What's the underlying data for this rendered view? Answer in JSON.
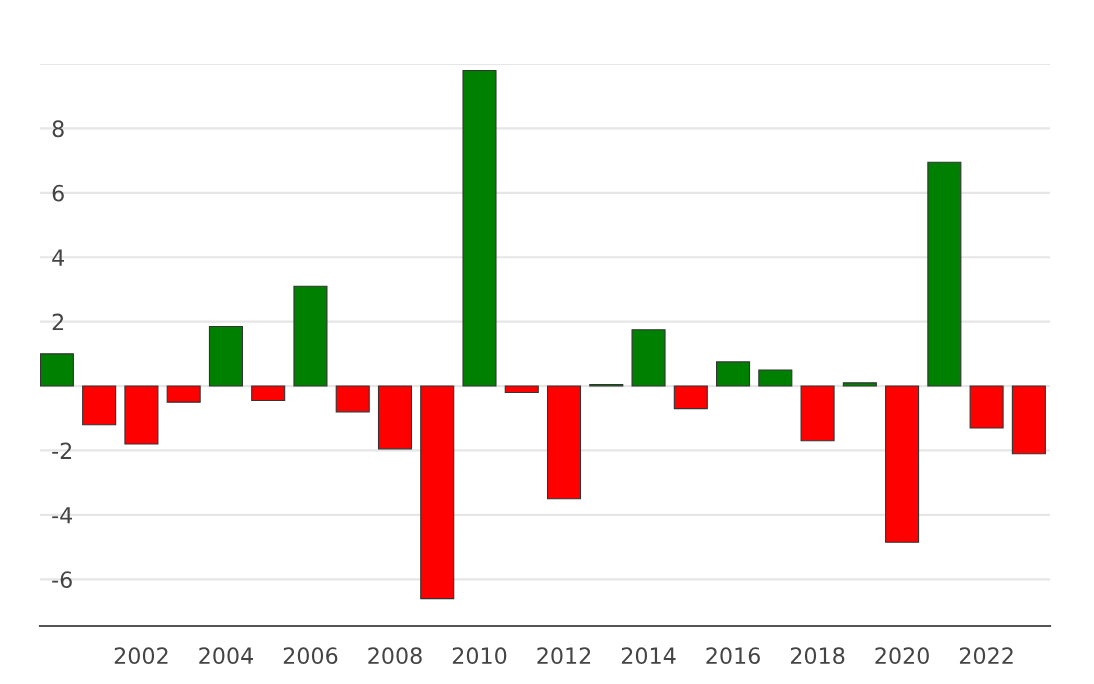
{
  "chart_data": {
    "type": "bar",
    "x": [
      2000,
      2001,
      2002,
      2003,
      2004,
      2005,
      2006,
      2007,
      2008,
      2009,
      2010,
      2011,
      2012,
      2013,
      2014,
      2015,
      2016,
      2017,
      2018,
      2019,
      2020,
      2021,
      2022,
      2023
    ],
    "values": [
      1.0,
      -1.2,
      -1.8,
      -0.5,
      1.85,
      -0.45,
      3.1,
      -0.8,
      -1.95,
      -6.6,
      9.8,
      -0.2,
      -3.5,
      0.05,
      1.75,
      -0.7,
      0.75,
      0.5,
      -1.7,
      0.1,
      -4.85,
      6.95,
      -1.3,
      -2.1
    ],
    "colors": [
      "#008000",
      "#ff0000",
      "#ff0000",
      "#ff0000",
      "#008000",
      "#ff0000",
      "#008000",
      "#ff0000",
      "#ff0000",
      "#ff0000",
      "#008000",
      "#ff0000",
      "#ff0000",
      "#008000",
      "#008000",
      "#ff0000",
      "#008000",
      "#008000",
      "#ff0000",
      "#008000",
      "#ff0000",
      "#008000",
      "#ff0000",
      "#ff0000"
    ],
    "xlim": [
      1999.6,
      2023.5
    ],
    "xticks": [
      2002,
      2004,
      2006,
      2008,
      2010,
      2012,
      2014,
      2016,
      2018,
      2020,
      2022
    ],
    "ylim": [
      -7.45,
      10
    ],
    "yticks": [
      -6,
      -4,
      -2,
      {
        "value": 0,
        "label": null
      },
      2,
      4,
      6,
      8,
      {
        "value": 10,
        "label": null
      }
    ],
    "grid": "y",
    "legend": false
  }
}
